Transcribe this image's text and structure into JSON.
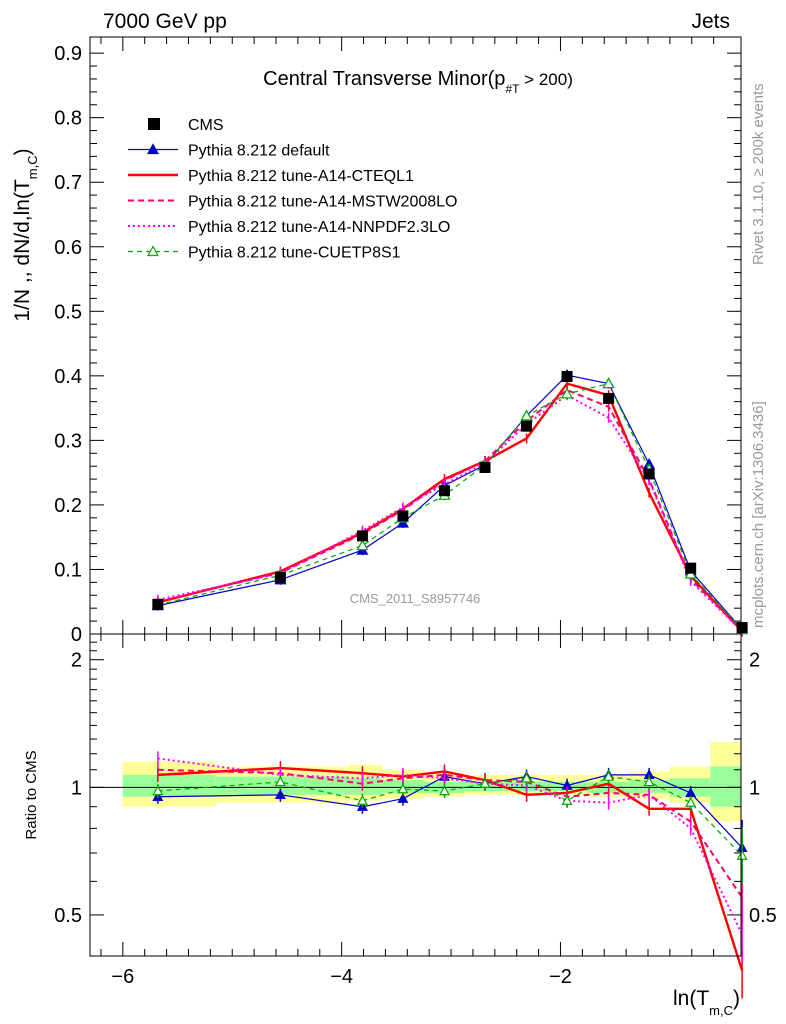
{
  "header": {
    "left": "7000 GeV pp",
    "right": "Jets"
  },
  "side_text": {
    "rivet": "Rivet 3.1.10, ≥ 200k events",
    "mcplots": "mcplots.cern.ch [arXiv:1306.3436]"
  },
  "watermark": "CMS_2011_S8957746",
  "colors": {
    "cms": "#000000",
    "default": "#0000cc",
    "cteql1": "#ff0000",
    "mstw": "#ff0066",
    "nnpdf": "#ff00ff",
    "cuetp": "#00aa00",
    "band_inner": "#99ff99",
    "band_outer": "#ffff99"
  },
  "chart_data": [
    {
      "type": "line",
      "title": "Central Transverse Minor(p",
      "title_sub": "#T",
      "title_tail": " > 200)",
      "ylabel_main": "1/N ,, dN/d,ln(T",
      "ylabel_sub": "m,C",
      "ylabel_tail": ")",
      "xlim": [
        -6.3,
        -0.35
      ],
      "ylim": [
        0,
        0.925
      ],
      "yticks": [
        0,
        0.1,
        0.2,
        0.3,
        0.4,
        0.5,
        0.6,
        0.7,
        0.8,
        0.9
      ],
      "ytick_labels": [
        "0",
        "0.1",
        "0.2",
        "0.3",
        "0.4",
        "0.5",
        "0.6",
        "0.7",
        "0.8",
        "0.9"
      ],
      "legend_position": "top-left",
      "x": [
        -5.68,
        -4.56,
        -3.81,
        -3.44,
        -3.06,
        -2.69,
        -2.31,
        -1.94,
        -1.56,
        -1.19,
        -0.81,
        -0.34
      ],
      "series": [
        {
          "key": "cms",
          "name": "CMS",
          "style": "marker",
          "values": [
            0.046,
            0.088,
            0.152,
            0.183,
            0.222,
            0.258,
            0.322,
            0.399,
            0.365,
            0.248,
            0.102,
            0.01
          ]
        },
        {
          "key": "default",
          "name": "Pythia 8.212 default",
          "style": "line-tri",
          "values": [
            0.044,
            0.084,
            0.13,
            0.172,
            0.23,
            0.262,
            0.338,
            0.401,
            0.388,
            0.263,
            0.098,
            0.007
          ]
        },
        {
          "key": "cteql1",
          "name": "Pythia 8.212 tune-A14-CTEQL1",
          "style": "solid-thick",
          "values": [
            0.049,
            0.097,
            0.157,
            0.194,
            0.24,
            0.268,
            0.303,
            0.388,
            0.37,
            0.219,
            0.09,
            0.004
          ]
        },
        {
          "key": "mstw",
          "name": "Pythia 8.212 tune-A14-MSTW2008LO",
          "style": "dashed",
          "values": [
            0.05,
            0.095,
            0.155,
            0.192,
            0.238,
            0.268,
            0.33,
            0.378,
            0.352,
            0.24,
            0.085,
            0.005
          ]
        },
        {
          "key": "nnpdf",
          "name": "Pythia 8.212 tune-A14-NNPDF2.3LO",
          "style": "dotted",
          "values": [
            0.053,
            0.094,
            0.16,
            0.196,
            0.232,
            0.264,
            0.325,
            0.37,
            0.335,
            0.238,
            0.082,
            0.004
          ]
        },
        {
          "key": "cuetp",
          "name": "Pythia 8.212 tune-CUETP8S1",
          "style": "dashed-open-tri",
          "values": [
            0.045,
            0.091,
            0.137,
            0.18,
            0.215,
            0.262,
            0.338,
            0.372,
            0.388,
            0.255,
            0.093,
            0.007
          ]
        }
      ]
    },
    {
      "type": "line",
      "ylabel": "Ratio to CMS",
      "xlabel_main": "ln(T",
      "xlabel_sub": "m,C",
      "xlabel_tail": ")",
      "xlim": [
        -6.3,
        -0.35
      ],
      "log_y": true,
      "ylim": [
        0.4,
        2.3
      ],
      "yticks": [
        0.5,
        1,
        2
      ],
      "ytick_labels": [
        "0.5",
        "1",
        "2"
      ],
      "xticks": [
        -6,
        -4,
        -2
      ],
      "xtick_labels": [
        "−6",
        "−4",
        "−2"
      ],
      "x": [
        -5.68,
        -4.56,
        -3.81,
        -3.44,
        -3.06,
        -2.69,
        -2.31,
        -1.94,
        -1.56,
        -1.19,
        -0.81,
        -0.34
      ],
      "band_edges": [
        -6.0,
        -5.15,
        -3.94,
        -3.63,
        -3.25,
        -2.88,
        -2.5,
        -2.13,
        -1.75,
        -1.38,
        -1.0,
        -0.63,
        -0.25
      ],
      "band_inner": [
        [
          0.95,
          1.07
        ],
        [
          0.96,
          1.06
        ],
        [
          0.96,
          1.05
        ],
        [
          0.97,
          1.04
        ],
        [
          0.97,
          1.03
        ],
        [
          0.98,
          1.03
        ],
        [
          0.98,
          1.03
        ],
        [
          0.98,
          1.03
        ],
        [
          0.97,
          1.03
        ],
        [
          0.97,
          1.04
        ],
        [
          0.95,
          1.05
        ],
        [
          0.9,
          1.12
        ]
      ],
      "band_outer": [
        [
          0.9,
          1.15
        ],
        [
          0.92,
          1.12
        ],
        [
          0.93,
          1.13
        ],
        [
          0.94,
          1.1
        ],
        [
          0.95,
          1.08
        ],
        [
          0.96,
          1.07
        ],
        [
          0.96,
          1.07
        ],
        [
          0.96,
          1.07
        ],
        [
          0.95,
          1.07
        ],
        [
          0.94,
          1.09
        ],
        [
          0.92,
          1.12
        ],
        [
          0.83,
          1.28
        ]
      ],
      "series": [
        {
          "key": "default",
          "name": "Pythia 8.212 default",
          "values": [
            0.95,
            0.96,
            0.9,
            0.94,
            1.06,
            1.02,
            1.06,
            1.01,
            1.07,
            1.07,
            0.97,
            0.72
          ]
        },
        {
          "key": "cteql1",
          "name": "Pythia 8.212 tune-A14-CTEQL1",
          "values": [
            1.07,
            1.11,
            1.08,
            1.06,
            1.09,
            1.04,
            0.96,
            0.97,
            1.02,
            0.89,
            0.89,
            0.37
          ]
        },
        {
          "key": "mstw",
          "name": "Pythia 8.212 tune-A14-MSTW2008LO",
          "values": [
            1.1,
            1.08,
            1.02,
            1.05,
            1.07,
            1.04,
            1.03,
            0.95,
            0.97,
            0.96,
            0.83,
            0.55
          ]
        },
        {
          "key": "nnpdf",
          "name": "Pythia 8.212 tune-A14-NNPDF2.3LO",
          "values": [
            1.17,
            1.07,
            1.05,
            1.07,
            1.05,
            1.02,
            1.01,
            0.93,
            0.92,
            0.96,
            0.8,
            0.45
          ]
        },
        {
          "key": "cuetp",
          "name": "Pythia 8.212 tune-CUETP8S1",
          "values": [
            0.98,
            1.03,
            0.93,
            0.99,
            0.98,
            1.02,
            1.05,
            0.93,
            1.06,
            1.03,
            0.92,
            0.69
          ]
        }
      ]
    }
  ]
}
